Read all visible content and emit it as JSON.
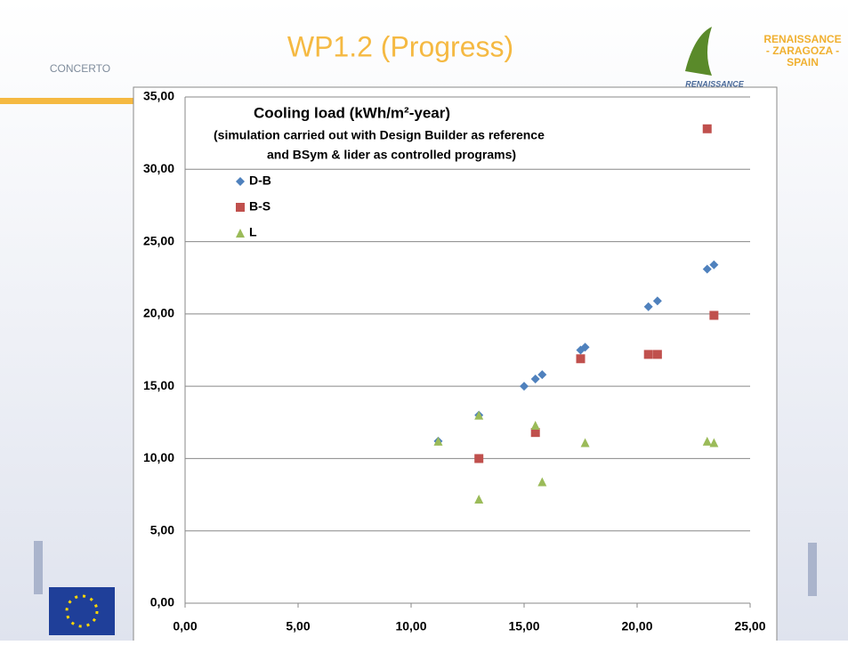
{
  "header": {
    "title": "WP1.2 (Progress)",
    "project": [
      "RENAISSANCE",
      "- ZARAGOZA -",
      "SPAIN"
    ],
    "logo_left": "CONCERTO",
    "logo_right": "RENAISSANCE"
  },
  "chart_data": {
    "type": "scatter",
    "title": "Cooling load (kWh/m²-year)",
    "subtitle": [
      "(simulation carried out with Design Builder as reference",
      "and BSym & lider as controlled programs)"
    ],
    "series": [
      {
        "name": "D-B",
        "color": "#4f81bd",
        "marker": "diamond",
        "x": [
          11.2,
          13.0,
          15.0,
          15.5,
          15.8,
          17.5,
          17.7,
          20.5,
          20.9,
          23.1,
          23.4
        ],
        "values": [
          11.2,
          13.0,
          15.0,
          15.5,
          15.8,
          17.5,
          17.7,
          20.5,
          20.9,
          23.1,
          23.4
        ]
      },
      {
        "name": "B-S",
        "color": "#c0504d",
        "marker": "square",
        "x": [
          13.0,
          15.5,
          17.5,
          20.5,
          20.9,
          23.1,
          23.4
        ],
        "values": [
          10.0,
          11.8,
          16.9,
          17.2,
          17.2,
          32.8,
          19.9
        ]
      },
      {
        "name": "L",
        "color": "#9bbb59",
        "marker": "triangle",
        "x": [
          11.2,
          13.0,
          13.0,
          15.5,
          15.8,
          17.7,
          23.1,
          23.4
        ],
        "values": [
          11.2,
          13.0,
          7.2,
          12.3,
          8.4,
          11.1,
          11.2,
          11.1
        ]
      }
    ],
    "xlim": [
      0,
      25
    ],
    "ylim": [
      0,
      35
    ],
    "xticks": [
      {
        "value": 0,
        "label": "0,00"
      },
      {
        "value": 5,
        "label": "5,00"
      },
      {
        "value": 10,
        "label": "10,00"
      },
      {
        "value": 15,
        "label": "15,00"
      },
      {
        "value": 20,
        "label": "20,00"
      },
      {
        "value": 25,
        "label": "25,00"
      }
    ],
    "yticks": [
      {
        "value": 0,
        "label": "0,00"
      },
      {
        "value": 5,
        "label": "5,00"
      },
      {
        "value": 10,
        "label": "10,00"
      },
      {
        "value": 15,
        "label": "15,00"
      },
      {
        "value": 20,
        "label": "20,00"
      },
      {
        "value": 25,
        "label": "25,00"
      },
      {
        "value": 30,
        "label": "30,00"
      },
      {
        "value": 35,
        "label": "35,00"
      }
    ],
    "grid": true,
    "legend": "upper-left"
  }
}
